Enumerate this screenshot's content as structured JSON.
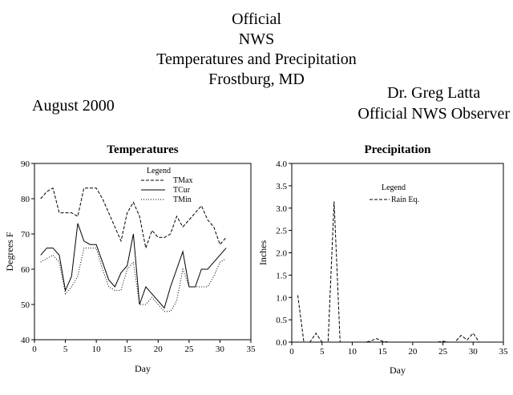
{
  "header": {
    "lines": [
      "Official",
      "NWS",
      "Temperatures and Precipitation",
      "Frostburg, MD"
    ],
    "month": "August 2000",
    "observer_name": "Dr. Greg Latta",
    "observer_title": "Official NWS Observer"
  },
  "chart_data": [
    {
      "type": "line",
      "title": "Temperatures",
      "xlabel": "Day",
      "ylabel": "Degrees F",
      "xlim": [
        0,
        35
      ],
      "ylim": [
        40,
        90
      ],
      "x_ticks": [
        "0",
        "5",
        "10",
        "15",
        "20",
        "25",
        "30",
        "35"
      ],
      "y_ticks": [
        "40",
        "50",
        "60",
        "70",
        "80",
        "90"
      ],
      "legend_title": "Legend",
      "legend_position": "top-right",
      "grid": false,
      "x": [
        1,
        2,
        3,
        4,
        5,
        6,
        7,
        8,
        9,
        10,
        11,
        12,
        13,
        14,
        15,
        16,
        17,
        18,
        19,
        20,
        21,
        22,
        23,
        24,
        25,
        26,
        27,
        28,
        29,
        30,
        31
      ],
      "series": [
        {
          "name": "TMax",
          "style": "dashed",
          "values": [
            80,
            82,
            83,
            76,
            76,
            76,
            75,
            83,
            83,
            83,
            80,
            76,
            72,
            68,
            76,
            79,
            75,
            66,
            71,
            69,
            69,
            70,
            75,
            72,
            74,
            76,
            78,
            74,
            72,
            67,
            69
          ]
        },
        {
          "name": "TCur",
          "style": "solid",
          "values": [
            64,
            66,
            66,
            64,
            54,
            58,
            73,
            68,
            67,
            67,
            62,
            57,
            55,
            59,
            61,
            70,
            50,
            55,
            53,
            51,
            49,
            55,
            60,
            65,
            55,
            55,
            60,
            60,
            62,
            64,
            66
          ]
        },
        {
          "name": "TMin",
          "style": "dotted",
          "values": [
            62,
            63,
            64,
            62,
            53,
            55,
            58,
            66,
            66,
            66,
            60,
            55,
            54,
            54,
            60,
            62,
            50,
            50,
            52,
            50,
            48,
            48,
            51,
            60,
            55,
            55,
            55,
            55,
            58,
            62,
            63
          ]
        }
      ]
    },
    {
      "type": "line",
      "title": "Precipitation",
      "xlabel": "Day",
      "ylabel": "Inches",
      "xlim": [
        0,
        35
      ],
      "ylim": [
        0,
        4
      ],
      "x_ticks": [
        "0",
        "5",
        "10",
        "15",
        "20",
        "25",
        "30",
        "35"
      ],
      "y_ticks": [
        "0.0",
        "0.5",
        "1.0",
        "1.5",
        "2.0",
        "2.5",
        "3.0",
        "3.5",
        "4.0"
      ],
      "legend_title": "Legend",
      "legend_position": "top-center",
      "grid": false,
      "x": [
        1,
        2,
        3,
        4,
        5,
        6,
        7,
        8,
        9,
        10,
        11,
        12,
        13,
        14,
        15,
        16,
        17,
        18,
        19,
        20,
        21,
        22,
        23,
        24,
        25,
        26,
        27,
        28,
        29,
        30,
        31
      ],
      "series": [
        {
          "name": "Rain Eq.",
          "style": "dashed",
          "values": [
            1.05,
            0,
            0,
            0.2,
            0,
            0,
            3.15,
            0,
            0,
            0,
            0,
            0,
            0.02,
            0.08,
            0.02,
            0,
            0,
            0,
            0,
            0,
            0,
            0,
            0,
            0,
            0.02,
            0,
            0,
            0.15,
            0.05,
            0.2,
            0
          ]
        }
      ]
    }
  ]
}
